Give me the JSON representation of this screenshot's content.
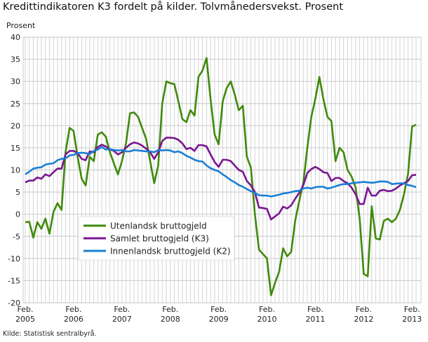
{
  "chart_data": {
    "type": "line",
    "title": "Kredittindikatoren K3 fordelt på kilder. Tolvmånedersvekst. Prosent",
    "ylabel": "Prosent",
    "xlabel": "",
    "ylim": [
      -20,
      40
    ],
    "yticks": [
      "40",
      "35",
      "30",
      "25",
      "20",
      "15",
      "10",
      "5",
      "0",
      "-5",
      "-10",
      "-15",
      "-20"
    ],
    "xticks": [
      {
        "month": "Feb.",
        "year": "2005",
        "index": 0
      },
      {
        "month": "Feb.",
        "year": "2006",
        "index": 12
      },
      {
        "month": "Feb.",
        "year": "2007",
        "index": 24
      },
      {
        "month": "Feb.",
        "year": "2008",
        "index": 36
      },
      {
        "month": "Feb.",
        "year": "2009",
        "index": 48
      },
      {
        "month": "Feb.",
        "year": "2010",
        "index": 60
      },
      {
        "month": "Feb.",
        "year": "2011",
        "index": 72
      },
      {
        "month": "Feb.",
        "year": "2012",
        "index": 84
      },
      {
        "month": "Feb.",
        "year": "2013",
        "index": 96
      }
    ],
    "x_start": "Feb. 2005",
    "x_step": "month",
    "grid": true,
    "legend": "lower-left",
    "series": [
      {
        "name": "Utenlandsk bruttogjeld",
        "color": "#3f8a0c",
        "values": [
          -1.8,
          -1.7,
          -5.3,
          -1.8,
          -3.3,
          -1,
          -4.4,
          0.5,
          2.5,
          1,
          14,
          19.5,
          18.8,
          13,
          8,
          6.5,
          13,
          12,
          18,
          18.5,
          17.5,
          14,
          11.5,
          9,
          12,
          16,
          22.8,
          23,
          22,
          19.5,
          17,
          12,
          7,
          11,
          25,
          30,
          29.6,
          29.4,
          25.5,
          21.5,
          20.8,
          23.5,
          22.3,
          31,
          32.5,
          35.3,
          26,
          18,
          15.8,
          25.5,
          28.5,
          30,
          27,
          23.5,
          24.5,
          13,
          10.5,
          0,
          -8,
          -9,
          -10,
          -18.3,
          -15.5,
          -13,
          -7.7,
          -9.5,
          -8.5,
          -1.5,
          3,
          7,
          15,
          22,
          26,
          31,
          26,
          22,
          21,
          12,
          15,
          14,
          10,
          8.5,
          6,
          -1,
          -13.5,
          -14,
          1.8,
          -5.5,
          -5.7,
          -1.5,
          -1,
          -1.8,
          -1,
          1,
          4.5,
          9,
          19.8,
          20.2
        ]
      },
      {
        "name": "Samlet bruttogjeld (K3)",
        "color": "#7a1691",
        "values": [
          7.2,
          7.6,
          7.6,
          8.3,
          8.0,
          9.0,
          8.6,
          9.5,
          10.3,
          10.3,
          13.5,
          14.3,
          14.3,
          13.8,
          12.5,
          12.2,
          14.2,
          14.0,
          15.2,
          15.7,
          15.3,
          14.6,
          14.3,
          13.5,
          14.0,
          15.0,
          15.8,
          16.2,
          16.0,
          15.5,
          14.8,
          14.0,
          12.5,
          14.0,
          16.5,
          17.3,
          17.3,
          17.2,
          16.8,
          16.0,
          14.7,
          15.0,
          14.3,
          15.6,
          15.6,
          15.3,
          13.5,
          11.8,
          10.7,
          12.3,
          12.3,
          12.0,
          11.0,
          10.0,
          9.6,
          7.5,
          6.5,
          5.0,
          1.5,
          1.4,
          1.2,
          -1.2,
          -0.5,
          0.2,
          1.7,
          1.3,
          2.0,
          3.5,
          4.8,
          6.5,
          9.3,
          10.2,
          10.7,
          10.2,
          9.5,
          9.3,
          7.5,
          8.2,
          8.2,
          7.5,
          7.0,
          6.0,
          4.5,
          2.3,
          2.3,
          6.0,
          4.2,
          4.2,
          5.3,
          5.5,
          5.2,
          5.3,
          5.8,
          6.5,
          7.0,
          7.5,
          8.8,
          8.9
        ]
      },
      {
        "name": "Innenlandsk bruttogjeld (K2)",
        "color": "#1a7fd6",
        "values": [
          9.0,
          9.6,
          10.3,
          10.5,
          10.6,
          11.2,
          11.4,
          11.5,
          12.2,
          12.5,
          12.6,
          13.3,
          13.4,
          13.8,
          13.9,
          13.8,
          13.6,
          14.3,
          14.6,
          15.2,
          14.6,
          14.7,
          14.5,
          14.4,
          14.5,
          14.2,
          14.2,
          14.5,
          14.4,
          14.3,
          14.2,
          14.2,
          14.0,
          14.5,
          14.4,
          14.5,
          14.4,
          14.0,
          14.2,
          13.8,
          13.2,
          12.8,
          12.3,
          12.0,
          11.9,
          11.0,
          10.4,
          10.0,
          9.7,
          9.0,
          8.4,
          7.7,
          7.2,
          6.6,
          6.2,
          5.7,
          5.2,
          4.8,
          4.3,
          4.2,
          4.2,
          4.0,
          4.2,
          4.4,
          4.7,
          4.8,
          5.0,
          5.2,
          5.3,
          5.8,
          6.0,
          5.8,
          6.1,
          6.2,
          6.2,
          5.8,
          6.0,
          6.3,
          6.6,
          6.8,
          6.8,
          7.0,
          7.1,
          7.2,
          7.3,
          7.2,
          7.1,
          7.2,
          7.4,
          7.4,
          7.3,
          6.8,
          6.9,
          7.0,
          7.0,
          6.6,
          6.4,
          6.1
        ]
      }
    ]
  },
  "source": "Kilde: Statistisk sentralbyrå."
}
